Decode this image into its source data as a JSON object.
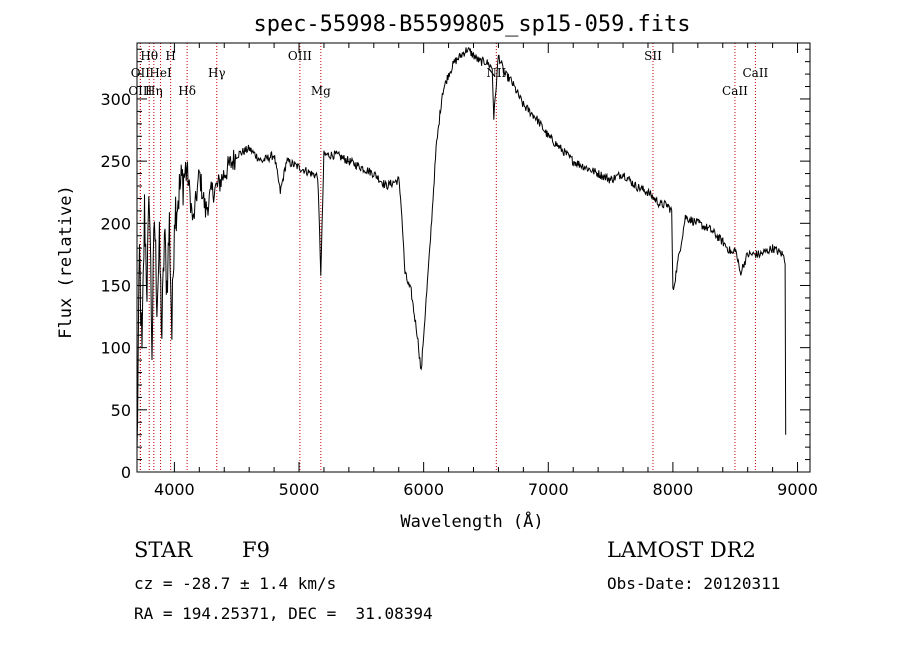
{
  "chart_data": {
    "type": "line",
    "title": "spec-55998-B5599805_sp15-059.fits",
    "xlabel": "Wavelength (Å)",
    "ylabel": "Flux (relative)",
    "xlim": [
      3700,
      9100
    ],
    "ylim": [
      0,
      345
    ],
    "xticks": [
      4000,
      5000,
      6000,
      7000,
      8000,
      9000
    ],
    "yticks": [
      0,
      50,
      100,
      150,
      200,
      250,
      300
    ],
    "grid": false,
    "line_color": "#000000",
    "marker_color": "#cc0000",
    "spectral_lines": [
      {
        "label": "Hθ",
        "wavelength": 3798,
        "row": 0
      },
      {
        "label": "H",
        "wavelength": 3970,
        "row": 0
      },
      {
        "label": "OII",
        "wavelength": 3727,
        "row": 1
      },
      {
        "label": "HeI",
        "wavelength": 3889,
        "row": 1
      },
      {
        "label": "Hγ",
        "wavelength": 4340,
        "row": 1
      },
      {
        "label": "OIII",
        "wavelength": 5007,
        "row": 0
      },
      {
        "label": "OIII",
        "wavelength": 3727,
        "row": 2
      },
      {
        "label": "Hη",
        "wavelength": 3835,
        "row": 2
      },
      {
        "label": "Hδ",
        "wavelength": 4102,
        "row": 2
      },
      {
        "label": "Mg",
        "wavelength": 5175,
        "row": 2
      },
      {
        "label": "NII",
        "wavelength": 6583,
        "row": 1
      },
      {
        "label": "SII",
        "wavelength": 7840,
        "row": 0
      },
      {
        "label": "CaII",
        "wavelength": 8662,
        "row": 1
      },
      {
        "label": "CaII",
        "wavelength": 8498,
        "row": 2
      }
    ],
    "series": [
      {
        "x": [
          3700,
          3720,
          3740,
          3760,
          3780,
          3800,
          3820,
          3840,
          3860,
          3880,
          3900,
          3920,
          3940,
          3960,
          3980,
          4000,
          4050,
          4100,
          4150,
          4200,
          4250,
          4300,
          4350,
          4400,
          4500,
          4600,
          4700,
          4800,
          4850,
          4900,
          5000,
          5100,
          5150,
          5175,
          5200,
          5300,
          5400,
          5500,
          5600,
          5700,
          5800,
          5820,
          5850,
          5880,
          5900,
          5920,
          5950,
          5980,
          6000,
          6050,
          6100,
          6150,
          6200,
          6250,
          6300,
          6350,
          6400,
          6450,
          6500,
          6550,
          6563,
          6600,
          6650,
          6700,
          6750,
          6800,
          6850,
          6900,
          7000,
          7100,
          7200,
          7300,
          7400,
          7500,
          7600,
          7700,
          7800,
          7900,
          7950,
          7990,
          8000,
          8100,
          8200,
          8300,
          8400,
          8480,
          8500,
          8540,
          8600,
          8700,
          8800,
          8880,
          8900,
          8905
        ],
        "y": [
          10,
          175,
          90,
          210,
          150,
          225,
          100,
          205,
          140,
          180,
          110,
          190,
          150,
          200,
          110,
          210,
          230,
          245,
          200,
          240,
          210,
          225,
          230,
          240,
          255,
          260,
          250,
          255,
          225,
          250,
          245,
          240,
          238,
          160,
          255,
          255,
          250,
          245,
          240,
          230,
          235,
          215,
          160,
          150,
          145,
          130,
          110,
          80,
          110,
          180,
          260,
          305,
          320,
          330,
          335,
          340,
          335,
          330,
          330,
          325,
          285,
          335,
          320,
          315,
          305,
          295,
          290,
          285,
          270,
          260,
          250,
          245,
          240,
          235,
          240,
          230,
          225,
          215,
          215,
          210,
          145,
          205,
          200,
          195,
          185,
          175,
          180,
          160,
          175,
          175,
          180,
          175,
          170,
          30
        ]
      }
    ]
  },
  "info": {
    "object_type": "STAR",
    "subclass": "F9",
    "survey": "LAMOST DR2",
    "redshift": "cz = -28.7 ± 1.4 km/s",
    "obs_date": "Obs-Date: 20120311",
    "coords": "RA = 194.25371, DEC =  31.08394"
  }
}
